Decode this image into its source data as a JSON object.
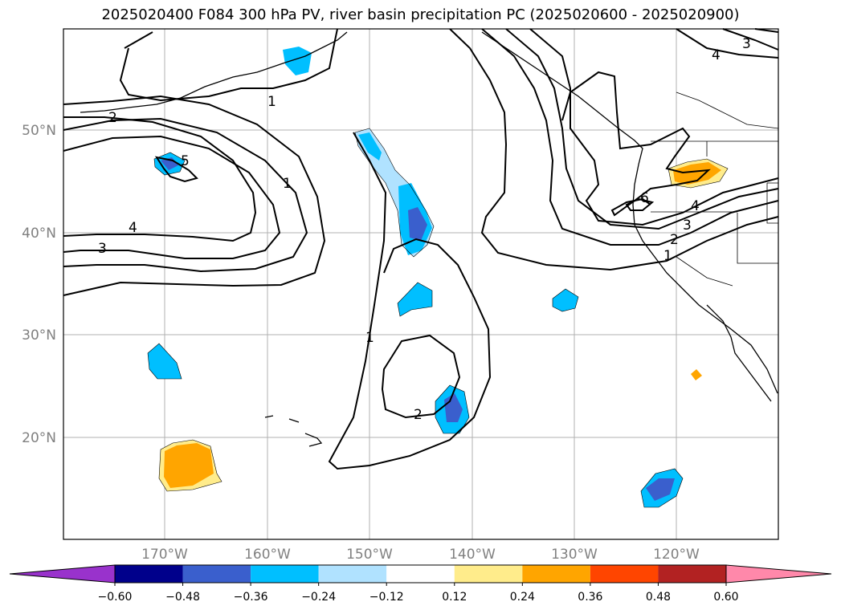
{
  "title": "2025020400 F084 300 hPa PV, river basin precipitation PC (2025020600 - 2025020900)",
  "lon_labels": [
    "170°W",
    "160°W",
    "150°W",
    "140°W",
    "130°W",
    "120°W"
  ],
  "lat_labels": [
    "50°N",
    "40°N",
    "30°N",
    "20°N"
  ],
  "contour_labels": [
    "1",
    "1",
    "1",
    "1",
    "2",
    "2",
    "2",
    "3",
    "3",
    "3",
    "4",
    "4",
    "4",
    "5",
    "6"
  ],
  "colorbar": {
    "tick_labels": [
      "−0.60",
      "−0.48",
      "−0.36",
      "−0.24",
      "−0.12",
      "0.12",
      "0.24",
      "0.36",
      "0.48",
      "0.60"
    ],
    "colors": [
      "#9932cc",
      "#00008b",
      "#3a5fcd",
      "#00bfff",
      "#b0e2ff",
      "#ffffff",
      "#ffec8b",
      "#ffa500",
      "#ff4500",
      "#b22222",
      "#ff88aa"
    ]
  }
}
